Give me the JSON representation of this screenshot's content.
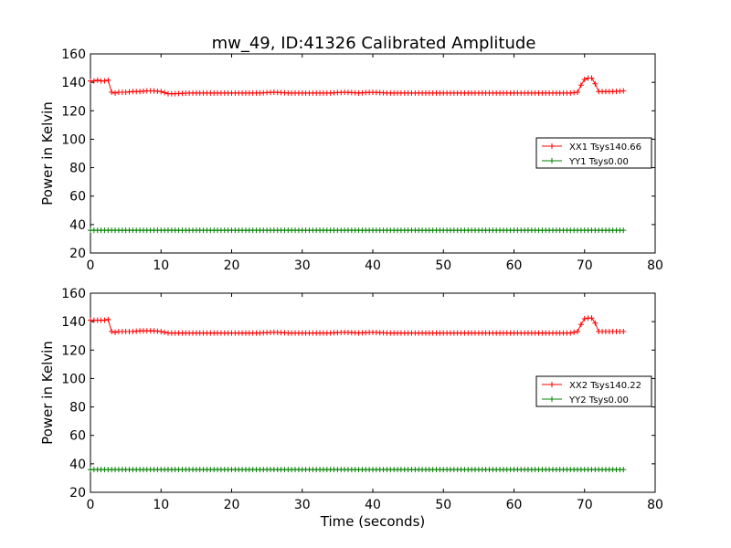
{
  "title": "mw_49, ID:41326 Calibrated Amplitude",
  "chart_data": [
    {
      "type": "line",
      "title": "mw_49, ID:41326 Calibrated Amplitude",
      "xlabel": "",
      "ylabel": "Power in Kelvin",
      "xlim": [
        0,
        80
      ],
      "ylim": [
        20,
        160
      ],
      "x_ticks": [
        "0",
        "10",
        "20",
        "30",
        "40",
        "50",
        "60",
        "70",
        "80"
      ],
      "y_ticks": [
        "20",
        "40",
        "60",
        "80",
        "100",
        "120",
        "140",
        "160"
      ],
      "grid": false,
      "legend_position": "right",
      "series": [
        {
          "name": "XX1 Tsys140.66",
          "color": "#ff0000",
          "marker": "+",
          "x": [
            0,
            0.5,
            1,
            1.5,
            2,
            2.5,
            3,
            3.5,
            4,
            5,
            6,
            7,
            8,
            9,
            10,
            11,
            12,
            14,
            16,
            18,
            20,
            22,
            24,
            26,
            28,
            30,
            32,
            34,
            36,
            38,
            40,
            42,
            44,
            46,
            48,
            50,
            52,
            54,
            56,
            58,
            60,
            62,
            64,
            66,
            68,
            69,
            69.5,
            70,
            70.5,
            71,
            71.5,
            72,
            73,
            74,
            75.5
          ],
          "y": [
            141,
            141,
            141.5,
            141,
            141,
            141.5,
            133,
            132.5,
            133,
            133,
            133.5,
            133.5,
            134,
            134,
            133.5,
            132,
            132,
            132.5,
            132.5,
            132.5,
            132.5,
            132.5,
            132.5,
            133,
            132.5,
            132.5,
            132.5,
            132.5,
            133,
            132.5,
            133,
            132.5,
            132.5,
            132.5,
            132.5,
            132.5,
            132.5,
            132.5,
            132.5,
            132.5,
            132.5,
            132.5,
            132.5,
            132.5,
            132.5,
            133,
            138,
            142,
            143,
            143,
            139,
            133.5,
            133.5,
            133.5,
            134
          ]
        },
        {
          "name": "YY1 Tsys0.00",
          "color": "#008000",
          "marker": "+",
          "x": [
            0,
            75.5
          ],
          "y": [
            36,
            36
          ]
        }
      ]
    },
    {
      "type": "line",
      "title": "",
      "xlabel": "Time (seconds)",
      "ylabel": "Power in Kelvin",
      "xlim": [
        0,
        80
      ],
      "ylim": [
        20,
        160
      ],
      "x_ticks": [
        "0",
        "10",
        "20",
        "30",
        "40",
        "50",
        "60",
        "70",
        "80"
      ],
      "y_ticks": [
        "20",
        "40",
        "60",
        "80",
        "100",
        "120",
        "140",
        "160"
      ],
      "grid": false,
      "legend_position": "right",
      "series": [
        {
          "name": "XX2 Tsys140.22",
          "color": "#ff0000",
          "marker": "+",
          "x": [
            0,
            0.5,
            1,
            1.5,
            2,
            2.5,
            3,
            3.5,
            4,
            5,
            6,
            7,
            8,
            9,
            10,
            11,
            12,
            14,
            16,
            18,
            20,
            22,
            24,
            26,
            28,
            30,
            32,
            34,
            36,
            38,
            40,
            42,
            44,
            46,
            48,
            50,
            52,
            54,
            56,
            58,
            60,
            62,
            64,
            66,
            68,
            69,
            69.5,
            70,
            70.5,
            71,
            71.5,
            72,
            73,
            74,
            75.5
          ],
          "y": [
            141,
            141,
            141,
            141,
            141,
            141.5,
            133,
            132.5,
            133,
            133,
            133,
            133.5,
            133.5,
            133.5,
            133,
            132,
            132,
            132,
            132,
            132,
            132,
            132,
            132,
            132.5,
            132,
            132,
            132,
            132,
            132.5,
            132,
            132.5,
            132,
            132,
            132,
            132,
            132,
            132,
            132,
            132,
            132,
            132,
            132,
            132,
            132,
            132,
            133,
            138,
            142,
            142.5,
            142.5,
            139,
            133,
            133,
            133,
            133
          ]
        },
        {
          "name": "YY2 Tsys0.00",
          "color": "#008000",
          "marker": "+",
          "x": [
            0,
            75.5
          ],
          "y": [
            36,
            36
          ]
        }
      ]
    }
  ]
}
